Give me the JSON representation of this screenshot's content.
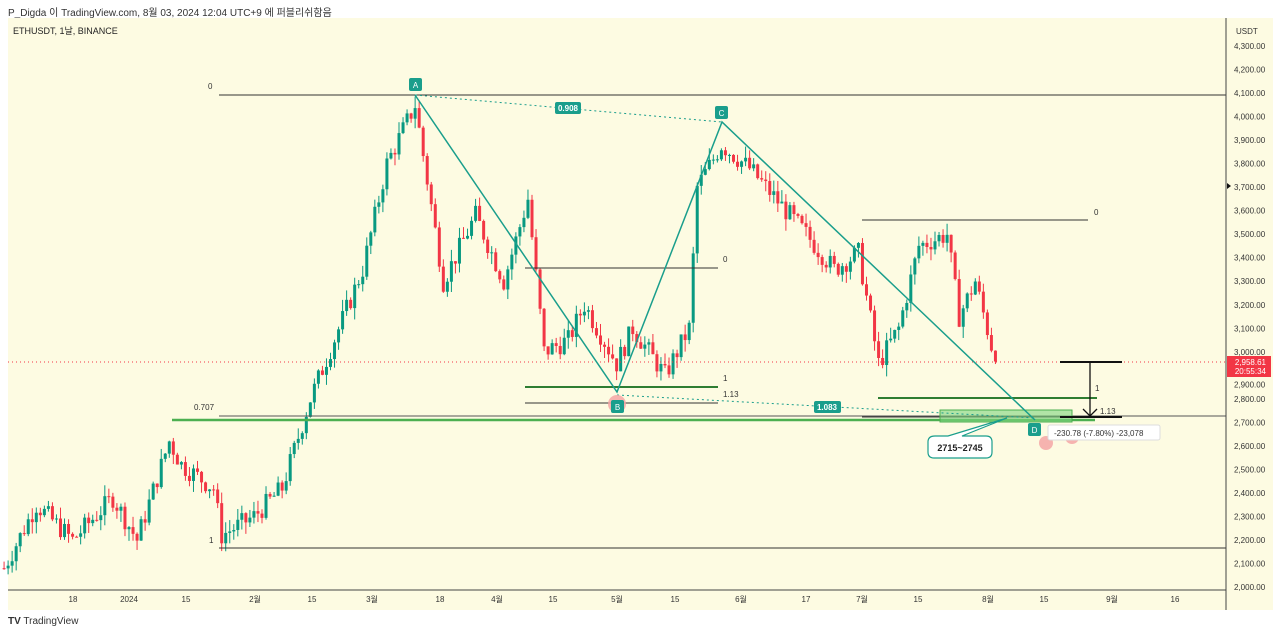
{
  "header": {
    "published": "P_Digda 이 TradingView.com, 8월 03, 2024 12:04 UTC+9 에 퍼블리쉬함음"
  },
  "symbol": "ETHUSDT, 1날, BINANCE",
  "brand": "TradingView",
  "colors": {
    "up": "#089981",
    "down": "#f23645",
    "bg": "#fdfbe2",
    "pattern": "#1a9e8c",
    "fib_green": "#2e7d32"
  },
  "last_price": {
    "value": "2,958.61",
    "countdown": "20:55:34"
  },
  "drawings": {
    "points": [
      "A",
      "B",
      "C",
      "D"
    ],
    "ratio_ac": "0.908",
    "ratio_bd": "1.083",
    "fib_left": {
      "zero": "0",
      "level_707": "0.707",
      "one": "1"
    },
    "fib_mid": {
      "zero": "0",
      "one": "1",
      "ext": "1.13"
    },
    "fib_right": {
      "zero": "0",
      "one": "1",
      "ext": "1.13"
    },
    "target_zone": "2715~2745",
    "measure": "-230.78 (-7.80%) -23,078"
  },
  "chart_data": {
    "type": "candlestick",
    "title": "ETHUSDT, 1D, BINANCE",
    "currency": "USDT",
    "ylim": [
      2000,
      4300
    ],
    "y_ticks": [
      "4,300.00",
      "4,200.00",
      "4,100.00",
      "4,000.00",
      "3,900.00",
      "3,800.00",
      "3,700.00",
      "3,600.00",
      "3,500.00",
      "3,400.00",
      "3,300.00",
      "3,200.00",
      "3,100.00",
      "3,000.00",
      "2,900.00",
      "2,800.00",
      "2,700.00",
      "2,600.00",
      "2,500.00",
      "2,400.00",
      "2,300.00",
      "2,200.00",
      "2,100.00",
      "2,000.00"
    ],
    "x_ticks": [
      "18",
      "2024",
      "15",
      "2월",
      "15",
      "3월",
      "18",
      "4월",
      "15",
      "5월",
      "15",
      "6월",
      "17",
      "7월",
      "15",
      "8월",
      "15",
      "9월",
      "16"
    ],
    "approx_close_path": [
      [
        "2023-12-01",
        2080
      ],
      [
        "2023-12-09",
        2350
      ],
      [
        "2023-12-18",
        2200
      ],
      [
        "2023-12-28",
        2380
      ],
      [
        "2024-01-03",
        2200
      ],
      [
        "2024-01-11",
        2620
      ],
      [
        "2024-01-14",
        2520
      ],
      [
        "2024-01-22",
        2420
      ],
      [
        "2024-01-24",
        2220
      ],
      [
        "2024-02-01",
        2300
      ],
      [
        "2024-02-08",
        2420
      ],
      [
        "2024-02-15",
        2800
      ],
      [
        "2024-02-28",
        3350
      ],
      [
        "2024-03-05",
        3800
      ],
      [
        "2024-03-12",
        4050
      ],
      [
        "2024-03-19",
        3300
      ],
      [
        "2024-03-27",
        3580
      ],
      [
        "2024-04-03",
        3300
      ],
      [
        "2024-04-09",
        3650
      ],
      [
        "2024-04-13",
        3000
      ],
      [
        "2024-04-19",
        3050
      ],
      [
        "2024-04-23",
        3200
      ],
      [
        "2024-05-01",
        2950
      ],
      [
        "2024-05-05",
        3100
      ],
      [
        "2024-05-13",
        2900
      ],
      [
        "2024-05-19",
        3100
      ],
      [
        "2024-05-21",
        3700
      ],
      [
        "2024-05-27",
        3880
      ],
      [
        "2024-06-03",
        3780
      ],
      [
        "2024-06-08",
        3680
      ],
      [
        "2024-06-17",
        3500
      ],
      [
        "2024-06-24",
        3350
      ],
      [
        "2024-06-30",
        3420
      ],
      [
        "2024-07-05",
        2950
      ],
      [
        "2024-07-10",
        3100
      ],
      [
        "2024-07-15",
        3450
      ],
      [
        "2024-07-22",
        3500
      ],
      [
        "2024-07-25",
        3150
      ],
      [
        "2024-07-29",
        3300
      ],
      [
        "2024-08-03",
        2958.61
      ]
    ]
  }
}
